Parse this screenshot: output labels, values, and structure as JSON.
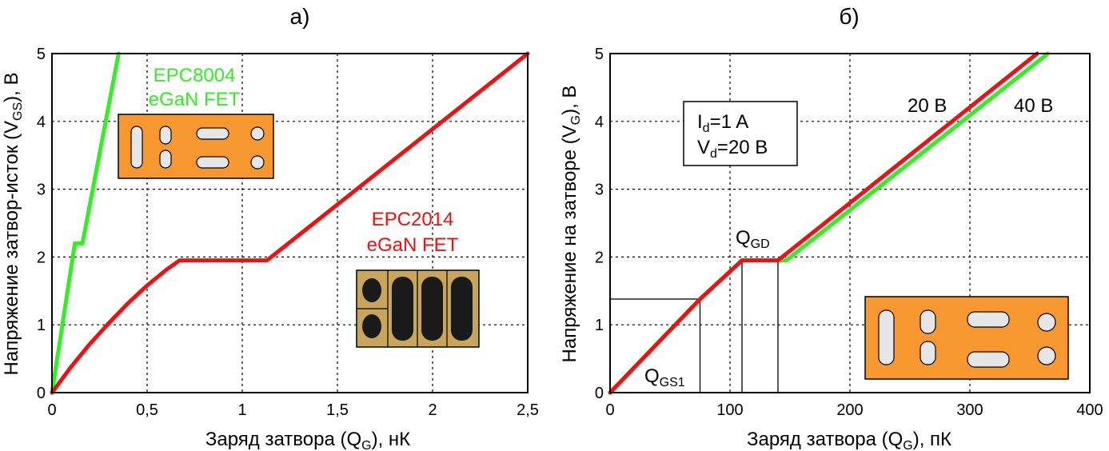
{
  "chart_data": [
    {
      "type": "line",
      "panel_label": "а)",
      "xlabel": {
        "pre": "Заряд затвора (Q",
        "sub": "G",
        "post": "), нК"
      },
      "ylabel": {
        "pre": "Напряжение затвор-исток (V",
        "sub": "GS",
        "post": "), В"
      },
      "xlim": [
        0,
        2.5
      ],
      "ylim": [
        0,
        5
      ],
      "xticks": [
        0,
        0.5,
        1,
        1.5,
        2,
        2.5
      ],
      "xtick_labels": [
        "0",
        "0,5",
        "1",
        "1,5",
        "2",
        "2,5"
      ],
      "yticks": [
        0,
        1,
        2,
        3,
        4,
        5
      ],
      "ytick_labels": [
        "0",
        "1",
        "2",
        "3",
        "4",
        "5"
      ],
      "grid": true,
      "series": [
        {
          "name_lines": [
            "EPC8004",
            "eGaN FET"
          ],
          "color": "#33ee22",
          "points": [
            [
              0,
              0
            ],
            [
              0.12,
              2.2
            ],
            [
              0.16,
              2.2
            ],
            [
              0.35,
              5
            ]
          ]
        },
        {
          "name_lines": [
            "EPC2014",
            "eGaN FET"
          ],
          "color": "#ee1111",
          "points": [
            [
              0,
              0
            ],
            [
              0.1,
              0.38
            ],
            [
              0.2,
              0.72
            ],
            [
              0.3,
              1.03
            ],
            [
              0.4,
              1.32
            ],
            [
              0.5,
              1.58
            ],
            [
              0.6,
              1.81
            ],
            [
              0.67,
              1.95
            ],
            [
              1.13,
              1.95
            ],
            [
              2.5,
              5
            ]
          ]
        }
      ]
    },
    {
      "type": "line",
      "panel_label": "б)",
      "xlabel": {
        "pre": "Заряд затвора (Q",
        "sub": "G",
        "post": "), пК"
      },
      "ylabel": {
        "pre": "Напряжение на затворе (V",
        "sub": "G",
        "post": "), В"
      },
      "xlim": [
        0,
        400
      ],
      "ylim": [
        0,
        5
      ],
      "xticks": [
        0,
        100,
        200,
        300,
        400
      ],
      "xtick_labels": [
        "0",
        "100",
        "200",
        "300",
        "400"
      ],
      "yticks": [
        0,
        1,
        2,
        3,
        4,
        5
      ],
      "ytick_labels": [
        "0",
        "1",
        "2",
        "3",
        "4",
        "5"
      ],
      "grid": true,
      "series": [
        {
          "name": "40 В",
          "color": "#33ee22",
          "points": [
            [
              0,
              0
            ],
            [
              75,
              1.38
            ],
            [
              110,
              1.95
            ],
            [
              147,
              1.95
            ],
            [
              365,
              5
            ]
          ]
        },
        {
          "name": "20 В",
          "color": "#ee1111",
          "points": [
            [
              0,
              0
            ],
            [
              75,
              1.38
            ],
            [
              110,
              1.95
            ],
            [
              140,
              1.95
            ],
            [
              356,
              5
            ]
          ]
        }
      ],
      "conditions": [
        {
          "pre": "I",
          "sub": "d",
          "post": "=1 A"
        },
        {
          "pre": "V",
          "sub": "d",
          "post": "=20 В"
        }
      ],
      "annotations": {
        "qgs1": {
          "pre": "Q",
          "sub": "GS1",
          "x": 75,
          "y": 1.38
        },
        "qgd": {
          "pre": "Q",
          "sub": "GD",
          "x1": 110,
          "x2": 140,
          "y": 1.95
        }
      }
    }
  ]
}
